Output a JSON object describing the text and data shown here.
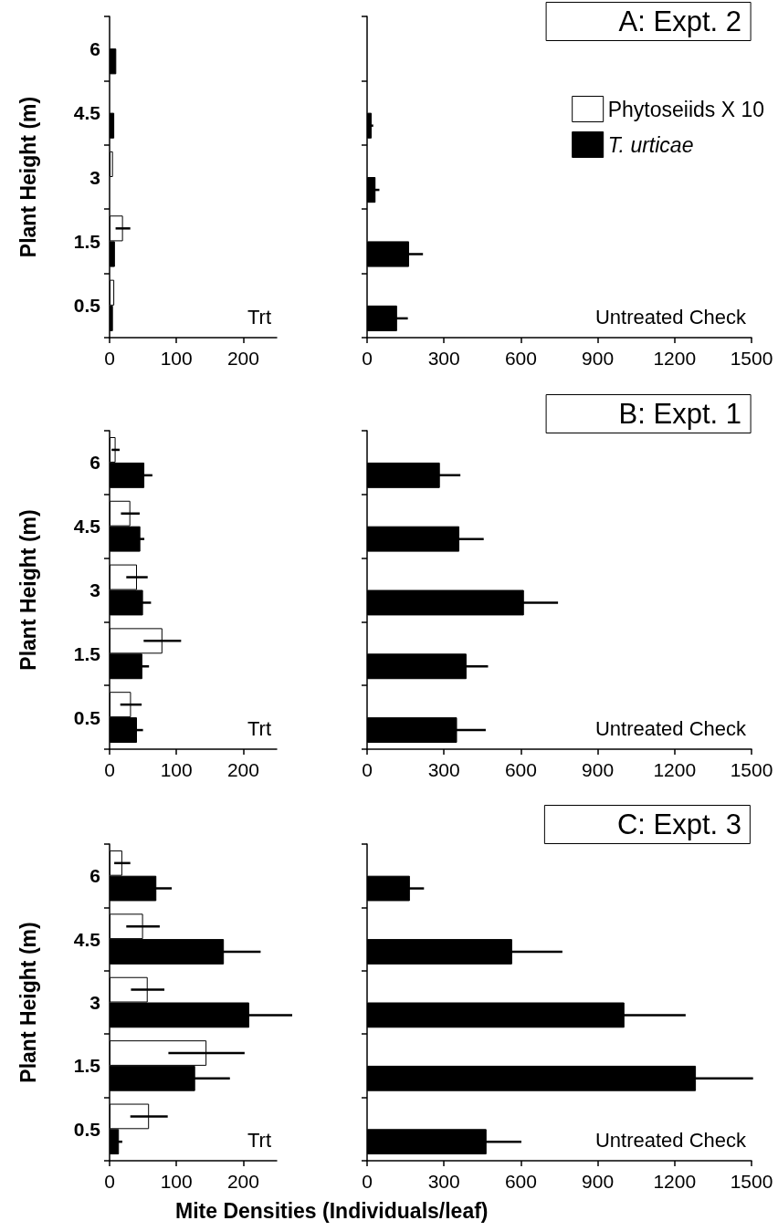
{
  "chart_data": [
    {
      "type": "bar",
      "orientation": "horizontal",
      "ylabel": "Plant Height (m)",
      "categories": [
        "6",
        "4.5",
        "3",
        "1.5",
        "0.5"
      ],
      "xlim": [
        0,
        250
      ],
      "xticks": [
        0,
        100,
        200
      ],
      "annotations": [
        "Trt"
      ],
      "series": [
        {
          "color": "#ffffff",
          "values": [
            null,
            null,
            5,
            20,
            7
          ],
          "errors": [
            null,
            null,
            null,
            11,
            null
          ]
        },
        {
          "color": "#000000",
          "values": [
            10,
            7,
            null,
            8,
            5
          ]
        }
      ]
    },
    {
      "type": "bar",
      "orientation": "horizontal",
      "title": "A: Expt. 2",
      "tick_labels": "x",
      "legend": "top right",
      "categories": [
        "6",
        "4.5",
        "3",
        "1.5",
        "0.5"
      ],
      "xlim": [
        0,
        1500
      ],
      "xticks": [
        0,
        300,
        600,
        900,
        1200,
        1500
      ],
      "annotations": [
        "Untreated Check"
      ],
      "series": [
        {
          "name": "Phytoseiids X 10",
          "color": "#ffffff",
          "values": [
            null,
            null,
            null,
            null,
            null
          ]
        },
        {
          "name": "T. urticae",
          "color": "#000000",
          "values": [
            null,
            18,
            33,
            164,
            117
          ],
          "errors": [
            null,
            6,
            15,
            54,
            42
          ]
        }
      ]
    },
    {
      "type": "bar",
      "orientation": "horizontal",
      "ylabel": "Plant Height (m)",
      "categories": [
        "6",
        "4.5",
        "3",
        "1.5",
        "0.5"
      ],
      "xlim": [
        0,
        250
      ],
      "xticks": [
        0,
        100,
        200
      ],
      "annotations": [
        "Trt"
      ],
      "series": [
        {
          "color": "#ffffff",
          "values": [
            9,
            31,
            41,
            79,
            32
          ],
          "errors": [
            6,
            14,
            16,
            28,
            16
          ]
        },
        {
          "color": "#000000",
          "values": [
            52,
            46,
            50,
            49,
            41
          ],
          "errors": [
            12,
            6,
            12,
            10,
            9
          ]
        }
      ]
    },
    {
      "type": "bar",
      "orientation": "horizontal",
      "title": "B: Expt. 1",
      "tick_labels": "x",
      "categories": [
        "6",
        "4.5",
        "3",
        "1.5",
        "0.5"
      ],
      "xlim": [
        0,
        1500
      ],
      "xticks": [
        0,
        300,
        600,
        900,
        1200,
        1500
      ],
      "annotations": [
        "Untreated Check"
      ],
      "series": [
        {
          "color": "#ffffff",
          "values": [
            null,
            null,
            null,
            null,
            null
          ]
        },
        {
          "color": "#000000",
          "values": [
            284,
            360,
            612,
            388,
            351
          ],
          "errors": [
            80,
            95,
            133,
            84,
            112
          ]
        }
      ]
    },
    {
      "type": "bar",
      "orientation": "horizontal",
      "ylabel": "Plant Height (m)",
      "categories": [
        "6",
        "4.5",
        "3",
        "1.5",
        "0.5"
      ],
      "xlim": [
        0,
        250
      ],
      "xticks": [
        0,
        100,
        200
      ],
      "annotations": [
        "Trt"
      ],
      "series": [
        {
          "color": "#ffffff",
          "values": [
            19,
            50,
            57,
            145,
            59
          ],
          "errors": [
            12,
            25,
            25,
            57,
            28
          ]
        },
        {
          "color": "#000000",
          "values": [
            70,
            171,
            209,
            128,
            14
          ],
          "errors": [
            23,
            55,
            77,
            52,
            5
          ]
        }
      ]
    },
    {
      "type": "bar",
      "orientation": "horizontal",
      "title": "C: Expt. 3",
      "tick_labels": "x",
      "xlabel": "Mite Densities (Individuals/leaf)",
      "categories": [
        "6",
        "4.5",
        "3",
        "1.5",
        "0.5"
      ],
      "xlim": [
        0,
        1500
      ],
      "xticks": [
        0,
        300,
        600,
        900,
        1200,
        1500
      ],
      "annotations": [
        "Untreated Check"
      ],
      "series": [
        {
          "color": "#ffffff",
          "values": [
            null,
            null,
            null,
            null,
            null
          ]
        },
        {
          "color": "#000000",
          "values": [
            167,
            566,
            1004,
            1283,
            466
          ],
          "errors": [
            55,
            196,
            239,
            223,
            136
          ]
        }
      ]
    }
  ]
}
